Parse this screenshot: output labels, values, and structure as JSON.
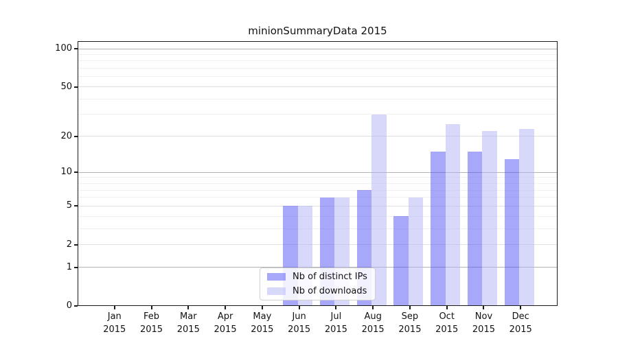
{
  "chart_data": {
    "type": "bar",
    "title": "minionSummaryData 2015",
    "x_axis": {
      "categories": [
        "Jan",
        "Feb",
        "Mar",
        "Apr",
        "May",
        "Jun",
        "Jul",
        "Aug",
        "Sep",
        "Oct",
        "Nov",
        "Dec"
      ],
      "year": "2015"
    },
    "y_axis": {
      "scale": "log(v+1)",
      "ticks": [
        100,
        50,
        20,
        10,
        5,
        2,
        1,
        0
      ],
      "decade_gridlines": [
        1,
        10,
        100
      ],
      "mid_gridlines": [
        2,
        5,
        20,
        50
      ],
      "minor_gridlines": [
        3,
        4,
        6,
        7,
        8,
        9,
        30,
        40,
        60,
        70,
        80,
        90
      ],
      "ylim": [
        0,
        100
      ]
    },
    "series": [
      {
        "name": "Nb of distinct IPs",
        "color": "rgba(81,81,245,0.5)",
        "values": [
          0,
          0,
          0,
          0,
          0,
          5,
          6,
          7,
          4,
          15,
          15,
          13
        ]
      },
      {
        "name": "Nb of downloads",
        "color": "rgba(177,177,245,0.5)",
        "values": [
          0,
          0,
          0,
          0,
          0,
          5,
          6,
          30,
          6,
          25,
          22,
          23
        ]
      }
    ],
    "legend_position": "bottom-center-inside",
    "colors": {
      "grid_decade": "#b3b3b3",
      "grid_mid": "#e0e0e0",
      "grid_minor": "#f0f0f0",
      "spine": "#1a1a1a",
      "background": "#ffffff"
    }
  }
}
